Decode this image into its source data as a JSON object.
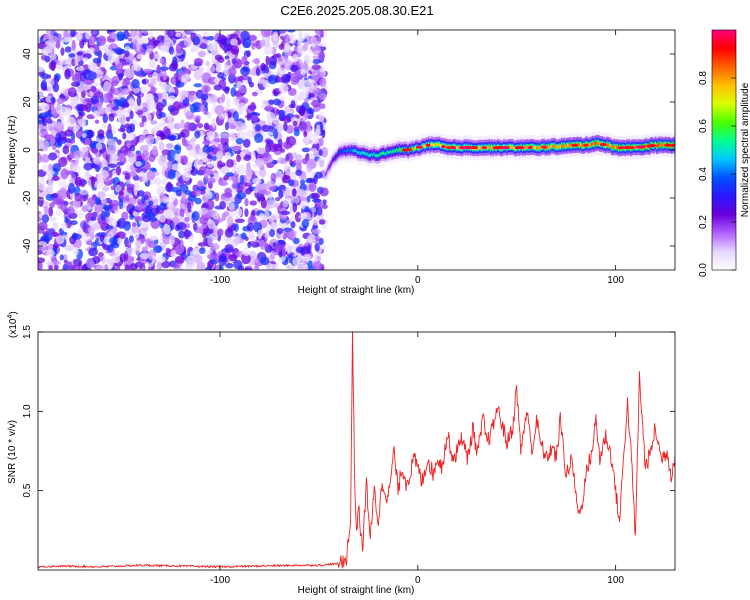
{
  "title": "C2E6.2025.205.08.30.E21",
  "chart_data": [
    {
      "type": "heatmap",
      "xlabel": "Height of straight line (km)",
      "ylabel": "Frequency (Hz)",
      "xlim": [
        -192,
        130
      ],
      "ylim": [
        -50,
        50
      ],
      "xticks": [
        -100,
        0,
        100
      ],
      "yticks": [
        -40,
        -20,
        0,
        20,
        40
      ],
      "colorbar": {
        "label": "Normalized spectral amplitude",
        "range": [
          0,
          1
        ],
        "ticks": [
          "0.0",
          "0.2",
          "0.4",
          "0.6",
          "0.8"
        ],
        "colors": [
          "#ffffff",
          "#e6d5ff",
          "#b060ff",
          "#6a00d8",
          "#2a18ff",
          "#0050ff",
          "#00c8ff",
          "#00ff90",
          "#4aff00",
          "#d8ff00",
          "#ffc000",
          "#ff6000",
          "#ff0000",
          "#ff007a"
        ]
      },
      "noise_region": {
        "x": [
          -192,
          -47
        ],
        "y": [
          -50,
          50
        ],
        "amplitude": [
          0.05,
          0.3
        ]
      },
      "signal_track": {
        "x": [
          -47,
          -43,
          -40,
          -35,
          -30,
          -25,
          -20,
          -15,
          -10,
          -5,
          0,
          5,
          10,
          15,
          20,
          30,
          40,
          50,
          60,
          70,
          80,
          85,
          90,
          95,
          100,
          110,
          120,
          130
        ],
        "y": [
          -10,
          -4,
          -1,
          0,
          -1,
          -2,
          -2,
          -1,
          0,
          0,
          1,
          2,
          2,
          1,
          1,
          1,
          1,
          1,
          1,
          1.5,
          2,
          2,
          3,
          2,
          1,
          1,
          2,
          2
        ],
        "amplitude": [
          0.2,
          0.3,
          0.4,
          0.5,
          0.55,
          0.55,
          0.6,
          0.6,
          0.65,
          0.7,
          0.75,
          0.8,
          0.85,
          0.85,
          0.85,
          0.85,
          0.85,
          0.85,
          0.9,
          0.9,
          0.9,
          0.9,
          0.95,
          0.9,
          0.9,
          0.9,
          0.95,
          0.95
        ]
      }
    },
    {
      "type": "line",
      "xlabel": "Height of straight line (km)",
      "ylabel": "SNR (10 * v/v)",
      "y_multiplier": "(x10",
      "y_multiplier_exp": "4",
      "y_multiplier_close": ")",
      "xlim": [
        -192,
        130
      ],
      "ylim": [
        0,
        1.5
      ],
      "xticks": [
        -100,
        0,
        100
      ],
      "yticks": [
        "0.5",
        "1.0",
        "1.5"
      ],
      "series": [
        {
          "color": "#ee2222",
          "x": [
            -192,
            -180,
            -160,
            -140,
            -120,
            -100,
            -80,
            -60,
            -50,
            -40,
            -36,
            -34,
            -33,
            -32,
            -31,
            -30,
            -28,
            -26,
            -24,
            -22,
            -20,
            -18,
            -15,
            -12,
            -10,
            -8,
            -6,
            -4,
            -2,
            0,
            2,
            5,
            8,
            10,
            12,
            15,
            18,
            20,
            22,
            25,
            28,
            30,
            33,
            35,
            38,
            40,
            42,
            45,
            48,
            50,
            52,
            55,
            58,
            60,
            62,
            65,
            68,
            70,
            72,
            75,
            78,
            80,
            82,
            85,
            88,
            90,
            92,
            95,
            98,
            100,
            102,
            104,
            106,
            108,
            110,
            112,
            115,
            118,
            120,
            123,
            126,
            128,
            130
          ],
          "y": [
            0.02,
            0.025,
            0.02,
            0.03,
            0.025,
            0.02,
            0.025,
            0.03,
            0.03,
            0.04,
            0.08,
            0.3,
            1.52,
            0.6,
            0.25,
            0.4,
            0.12,
            0.55,
            0.2,
            0.5,
            0.3,
            0.55,
            0.45,
            0.75,
            0.5,
            0.65,
            0.55,
            0.6,
            0.7,
            0.65,
            0.55,
            0.7,
            0.6,
            0.72,
            0.65,
            0.85,
            0.7,
            0.75,
            0.85,
            0.7,
            0.9,
            0.72,
            0.95,
            0.8,
            0.9,
            1.02,
            0.95,
            0.8,
            0.9,
            1.15,
            0.75,
            1.0,
            0.75,
            0.95,
            0.8,
            0.7,
            0.78,
            0.7,
            0.95,
            0.6,
            0.7,
            0.45,
            0.34,
            0.6,
            0.75,
            0.95,
            0.7,
            0.85,
            0.7,
            0.5,
            0.3,
            0.72,
            1.05,
            0.7,
            0.2,
            1.22,
            0.65,
            0.75,
            0.9,
            0.7,
            0.75,
            0.6,
            0.72
          ]
        }
      ]
    }
  ]
}
